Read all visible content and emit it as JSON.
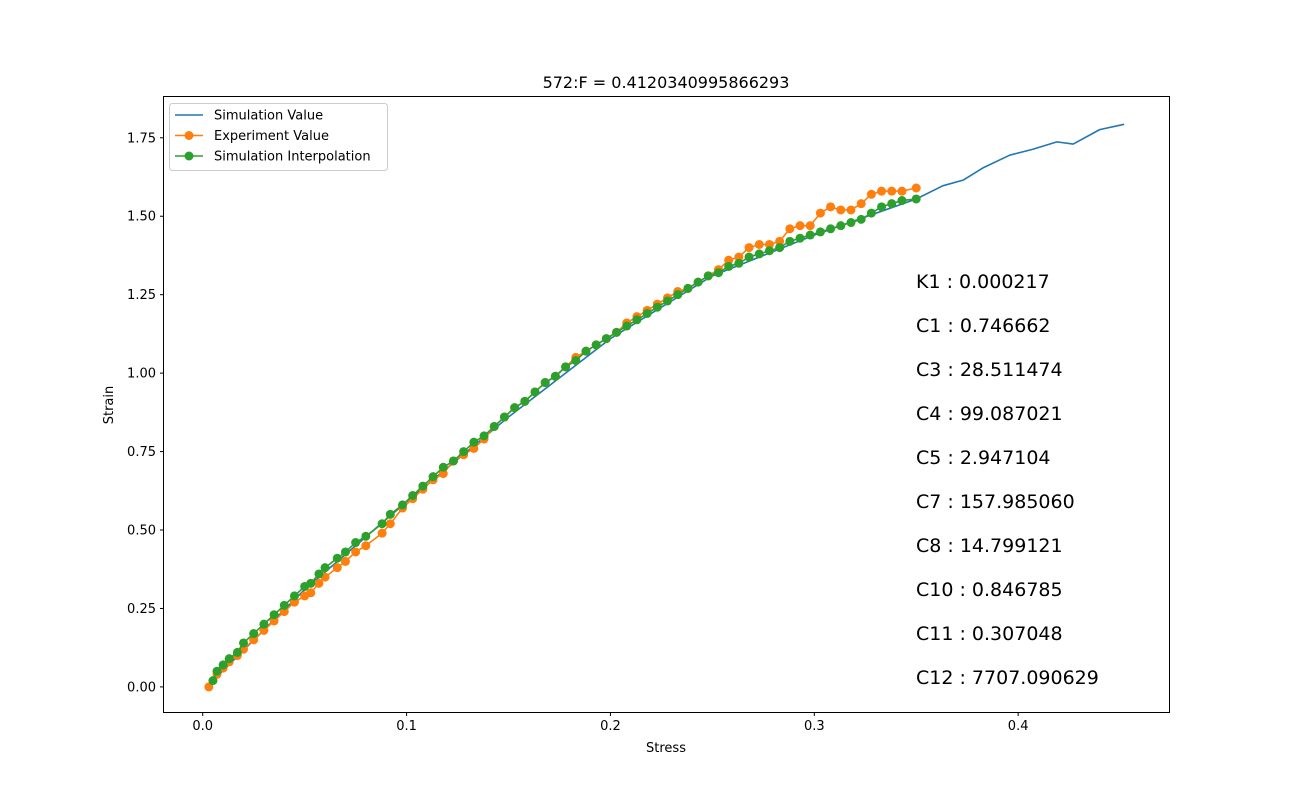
{
  "chart_data": {
    "type": "line",
    "title": "572:F = 0.4120340995866293",
    "xlabel": "Stress",
    "ylabel": "Strain",
    "xlim": [
      -0.019,
      0.474
    ],
    "ylim": [
      -0.08,
      1.88
    ],
    "xticks": [
      0.0,
      0.1,
      0.2,
      0.3,
      0.4
    ],
    "xtick_labels": [
      "0.0",
      "0.1",
      "0.2",
      "0.3",
      "0.4"
    ],
    "yticks": [
      0.0,
      0.25,
      0.5,
      0.75,
      1.0,
      1.25,
      1.5,
      1.75
    ],
    "ytick_labels": [
      "0.00",
      "0.25",
      "0.50",
      "0.75",
      "1.00",
      "1.25",
      "1.50",
      "1.75"
    ],
    "grid": false,
    "legend_position": "top-left",
    "series": [
      {
        "name": "Simulation Value",
        "color": "#1f77b4",
        "marker": "none",
        "x": [
          0.005,
          0.05,
          0.1,
          0.15,
          0.2,
          0.25,
          0.3,
          0.35,
          0.363,
          0.373,
          0.383,
          0.396,
          0.407,
          0.419,
          0.427,
          0.44,
          0.452
        ],
        "y": [
          0.02,
          0.31,
          0.59,
          0.86,
          1.11,
          1.31,
          1.44,
          1.555,
          1.597,
          1.615,
          1.655,
          1.695,
          1.713,
          1.737,
          1.73,
          1.776,
          1.793
        ]
      },
      {
        "name": "Experiment Value",
        "color": "#ff7f0e",
        "marker": "circle",
        "x": [
          0.003,
          0.007,
          0.01,
          0.013,
          0.017,
          0.02,
          0.025,
          0.03,
          0.035,
          0.04,
          0.045,
          0.05,
          0.053,
          0.057,
          0.06,
          0.066,
          0.07,
          0.075,
          0.08,
          0.088,
          0.092,
          0.098,
          0.103,
          0.108,
          0.113,
          0.118,
          0.123,
          0.128,
          0.133,
          0.138,
          0.143,
          0.148,
          0.153,
          0.158,
          0.163,
          0.168,
          0.173,
          0.178,
          0.183,
          0.188,
          0.193,
          0.198,
          0.203,
          0.208,
          0.213,
          0.218,
          0.223,
          0.228,
          0.233,
          0.238,
          0.243,
          0.248,
          0.253,
          0.258,
          0.263,
          0.268,
          0.273,
          0.278,
          0.283,
          0.288,
          0.293,
          0.298,
          0.303,
          0.308,
          0.313,
          0.318,
          0.323,
          0.328,
          0.333,
          0.338,
          0.343,
          0.35
        ],
        "y": [
          0.0,
          0.04,
          0.06,
          0.08,
          0.1,
          0.12,
          0.15,
          0.18,
          0.21,
          0.24,
          0.27,
          0.29,
          0.3,
          0.33,
          0.35,
          0.38,
          0.4,
          0.43,
          0.45,
          0.49,
          0.52,
          0.57,
          0.6,
          0.63,
          0.66,
          0.68,
          0.72,
          0.74,
          0.76,
          0.79,
          0.83,
          0.86,
          0.89,
          0.91,
          0.94,
          0.97,
          0.99,
          1.02,
          1.05,
          1.07,
          1.09,
          1.11,
          1.13,
          1.16,
          1.18,
          1.2,
          1.22,
          1.24,
          1.26,
          1.27,
          1.29,
          1.31,
          1.33,
          1.36,
          1.37,
          1.4,
          1.41,
          1.41,
          1.42,
          1.46,
          1.47,
          1.47,
          1.51,
          1.53,
          1.52,
          1.52,
          1.54,
          1.57,
          1.58,
          1.58,
          1.58,
          1.59
        ]
      },
      {
        "name": "Simulation Interpolation",
        "color": "#2ca02c",
        "marker": "circle",
        "x": [
          0.005,
          0.007,
          0.01,
          0.013,
          0.017,
          0.02,
          0.025,
          0.03,
          0.035,
          0.04,
          0.045,
          0.05,
          0.053,
          0.057,
          0.06,
          0.066,
          0.07,
          0.075,
          0.08,
          0.088,
          0.092,
          0.098,
          0.103,
          0.108,
          0.113,
          0.118,
          0.123,
          0.128,
          0.133,
          0.138,
          0.143,
          0.148,
          0.153,
          0.158,
          0.163,
          0.168,
          0.173,
          0.178,
          0.183,
          0.188,
          0.193,
          0.198,
          0.203,
          0.208,
          0.213,
          0.218,
          0.223,
          0.228,
          0.233,
          0.238,
          0.243,
          0.248,
          0.253,
          0.258,
          0.263,
          0.268,
          0.273,
          0.278,
          0.283,
          0.288,
          0.293,
          0.298,
          0.303,
          0.308,
          0.313,
          0.318,
          0.323,
          0.328,
          0.333,
          0.338,
          0.343,
          0.35
        ],
        "y": [
          0.02,
          0.05,
          0.07,
          0.09,
          0.11,
          0.14,
          0.17,
          0.2,
          0.23,
          0.26,
          0.29,
          0.32,
          0.33,
          0.36,
          0.38,
          0.41,
          0.43,
          0.46,
          0.48,
          0.52,
          0.55,
          0.58,
          0.61,
          0.64,
          0.67,
          0.7,
          0.72,
          0.75,
          0.78,
          0.8,
          0.83,
          0.86,
          0.89,
          0.91,
          0.94,
          0.97,
          0.99,
          1.02,
          1.04,
          1.07,
          1.09,
          1.11,
          1.13,
          1.15,
          1.17,
          1.19,
          1.21,
          1.23,
          1.25,
          1.27,
          1.29,
          1.31,
          1.32,
          1.34,
          1.35,
          1.37,
          1.38,
          1.39,
          1.4,
          1.42,
          1.43,
          1.44,
          1.45,
          1.46,
          1.47,
          1.48,
          1.49,
          1.51,
          1.53,
          1.54,
          1.55,
          1.555
        ]
      }
    ],
    "annotations": [
      "K1 : 0.000217",
      "C1 : 0.746662",
      "C3 : 28.511474",
      "C4 : 99.087021",
      "C5 : 2.947104",
      "C7 : 157.985060",
      "C8 : 14.799121",
      "C10 : 0.846785",
      "C11 : 0.307048",
      "C12 : 7707.090629"
    ]
  }
}
